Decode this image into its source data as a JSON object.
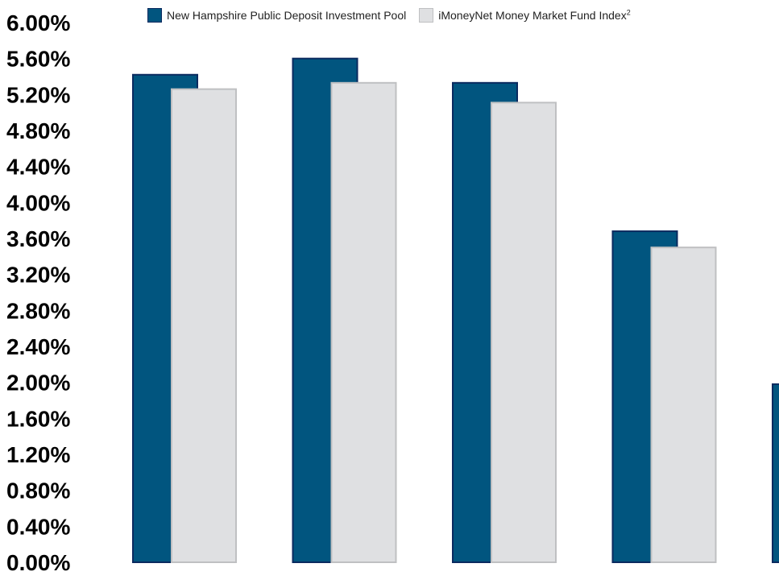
{
  "chart_data": {
    "type": "bar",
    "title": "",
    "xlabel": "",
    "ylabel": "",
    "ylim": [
      0,
      6.0
    ],
    "y_ticks": [
      "0.00%",
      "0.40%",
      "0.80%",
      "1.20%",
      "1.60%",
      "2.00%",
      "2.40%",
      "2.80%",
      "3.20%",
      "3.60%",
      "4.00%",
      "4.40%",
      "4.80%",
      "5.20%",
      "5.60%",
      "6.00%"
    ],
    "grid": false,
    "legend_position": "top",
    "categories": [
      "",
      "",
      "",
      "",
      ""
    ],
    "series": [
      {
        "name": "New Hampshire Public Deposit Investment Pool",
        "color": "#01557f",
        "border_color": "#0b2a5f",
        "values": [
          5.42,
          5.6,
          5.33,
          3.68,
          1.98
        ]
      },
      {
        "name": "iMoneyNet Money Market Fund Index",
        "name_superscript": "2",
        "color": "#dfe0e2",
        "border_color": "#bfc0c2",
        "values": [
          5.26,
          5.33,
          5.11,
          3.5,
          null
        ]
      }
    ]
  }
}
